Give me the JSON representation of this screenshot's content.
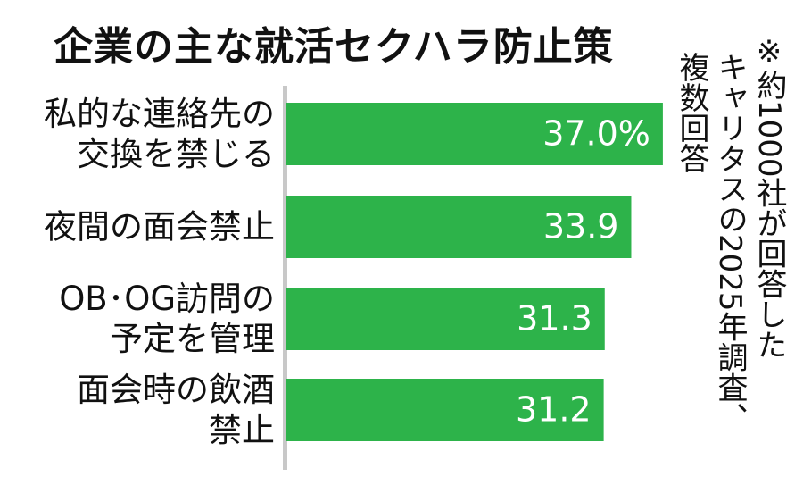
{
  "chart_data": {
    "type": "bar",
    "orientation": "horizontal",
    "title": "企業の主な就活セクハラ防止策",
    "categories": [
      "私的な連絡先の\n交換を禁じる",
      "夜間の面会禁止",
      "OB･OG訪問の\n予定を管理",
      "面会時の飲酒\n禁止"
    ],
    "values": [
      37.0,
      33.9,
      31.3,
      31.2
    ],
    "value_labels": [
      "37.0%",
      "33.9",
      "31.3",
      "31.2"
    ],
    "color": "#2db34a",
    "note": [
      "※約1000社が回答した",
      "キャリタスの2025年調査、",
      "複数回答"
    ]
  }
}
